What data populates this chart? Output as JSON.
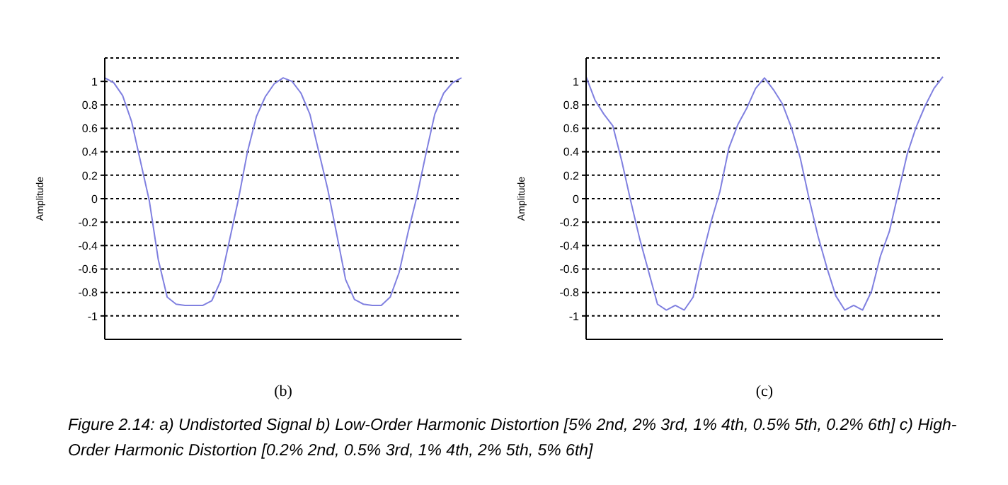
{
  "chart_data": [
    {
      "type": "line",
      "xlabel": "(b)",
      "ylabel": "Amplitude",
      "categories": [
        null,
        null,
        null,
        null,
        null,
        null,
        null,
        null,
        null,
        null,
        null,
        null,
        null,
        null,
        null,
        null,
        null,
        null,
        null,
        null,
        null,
        null,
        null,
        null,
        null,
        null,
        null,
        null,
        null,
        null,
        null,
        null,
        null,
        null,
        null,
        null,
        null,
        null,
        null,
        null,
        null
      ],
      "ylim": [
        -1.2,
        1.2
      ],
      "yticks": [
        -1,
        -0.8,
        -0.6,
        -0.4,
        -0.2,
        0,
        0.2,
        0.4,
        0.6,
        0.8,
        1
      ],
      "grid": "y",
      "line_style": "solid",
      "marker": "none",
      "series": [
        {
          "color": "#8080e0",
          "values": [
            1.03,
            0.99,
            0.88,
            0.66,
            0.32,
            -0.02,
            -0.52,
            -0.84,
            -0.9,
            -0.91,
            -0.91,
            -0.91,
            -0.87,
            -0.7,
            -0.35,
            0,
            0.4,
            0.7,
            0.87,
            0.98,
            1.03,
            1.0,
            0.9,
            0.72,
            0.4,
            0.08,
            -0.3,
            -0.69,
            -0.86,
            -0.9,
            -0.91,
            -0.91,
            -0.84,
            -0.63,
            -0.29,
            0.02,
            0.38,
            0.72,
            0.9,
            0.99,
            1.03
          ]
        }
      ]
    },
    {
      "type": "line",
      "xlabel": "(c)",
      "ylabel": "Amplitude",
      "categories": [
        null,
        null,
        null,
        null,
        null,
        null,
        null,
        null,
        null,
        null,
        null,
        null,
        null,
        null,
        null,
        null,
        null,
        null,
        null,
        null,
        null,
        null,
        null,
        null,
        null,
        null,
        null,
        null,
        null,
        null,
        null,
        null,
        null,
        null,
        null,
        null,
        null,
        null,
        null,
        null,
        null
      ],
      "ylim": [
        -1.2,
        1.2
      ],
      "yticks": [
        -1,
        -0.8,
        -0.6,
        -0.4,
        -0.2,
        0,
        0.2,
        0.4,
        0.6,
        0.8,
        1
      ],
      "grid": "y",
      "line_style": "solid",
      "marker": "none",
      "annotations": [
        "Figure 2.14: a) Undistorted Signal b) Low-Order Harmonic Distortion [5% 2nd, 2% 3rd, 1% 4th, 0.5% 5th, 0.2% 6th] c) High-Order Harmonic Distortion [0.2% 2nd, 0.5% 3rd, 1% 4th, 2% 5th, 5% 6th]"
      ],
      "series": [
        {
          "color": "#8080e0",
          "values": [
            1.04,
            0.84,
            0.72,
            0.62,
            0.32,
            -0.02,
            -0.34,
            -0.62,
            -0.9,
            -0.95,
            -0.91,
            -0.95,
            -0.84,
            -0.5,
            -0.2,
            0.06,
            0.43,
            0.63,
            0.77,
            0.94,
            1.03,
            0.93,
            0.81,
            0.61,
            0.35,
            0,
            -0.32,
            -0.59,
            -0.83,
            -0.95,
            -0.91,
            -0.95,
            -0.79,
            -0.49,
            -0.28,
            0.05,
            0.38,
            0.61,
            0.79,
            0.94,
            1.04
          ]
        }
      ]
    }
  ]
}
